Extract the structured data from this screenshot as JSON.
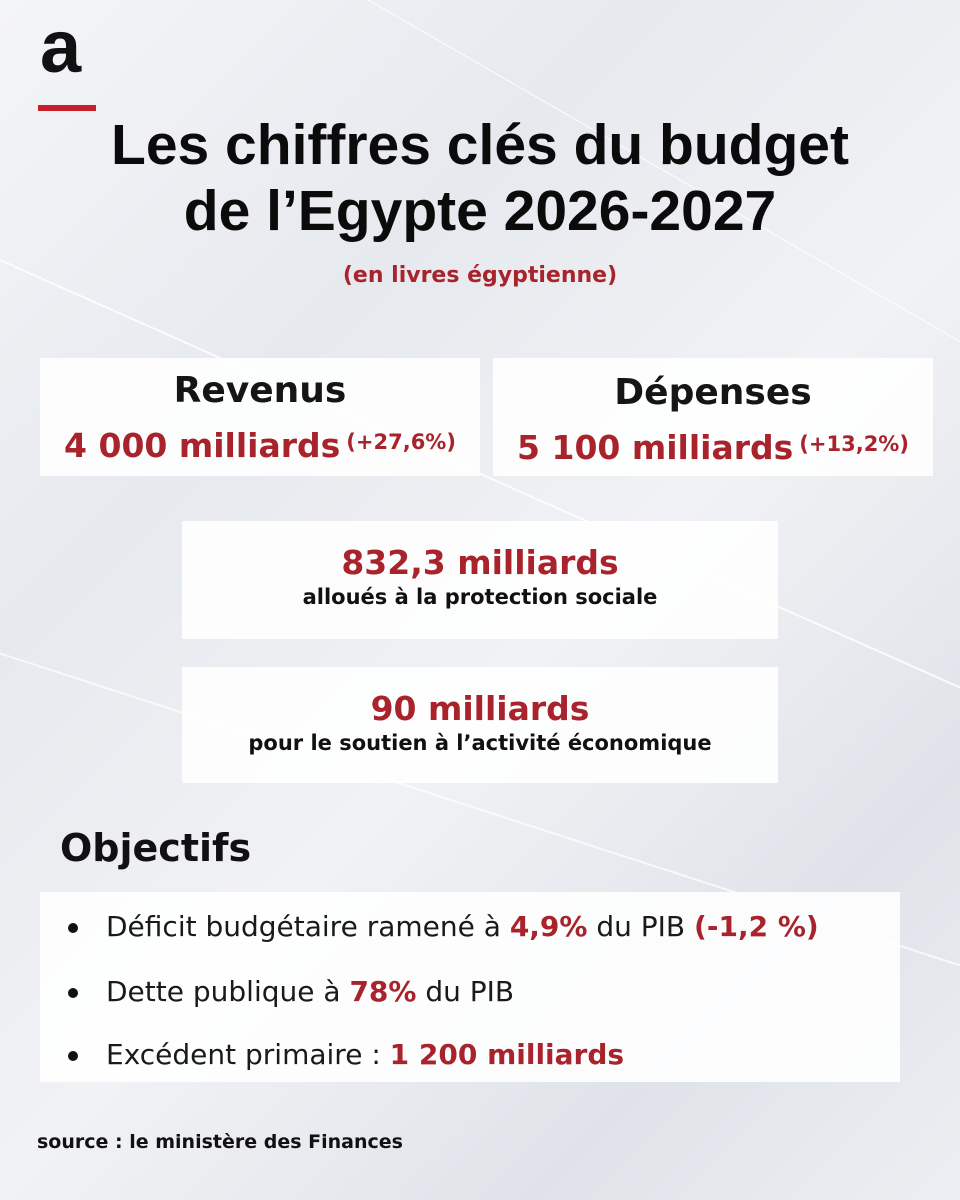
{
  "brand": {
    "logo_letter": "a",
    "accent_color": "#c8202a"
  },
  "title": {
    "line1": "Les chiffres clés du budget",
    "line2": "de l’Egypte 2026-2027"
  },
  "subtitle": "(en livres égyptienne)",
  "revenus": {
    "label": "Revenus",
    "value": "4 000 milliards",
    "change": "(+27,6%)"
  },
  "depenses": {
    "label": "Dépenses",
    "value": "5 100 milliards",
    "change": "(+13,2%)"
  },
  "social": {
    "value": "832,3 milliards",
    "description": "alloués à la protection sociale"
  },
  "economie": {
    "value": "90 milliards",
    "description": "pour le soutien à l’activité économique"
  },
  "objectifs": {
    "heading": "Objectifs",
    "items": [
      {
        "before": "Déficit budgétaire ramené à ",
        "highlight": "4,9%",
        "after": " du PIB ",
        "highlight2": "(-1,2 %)"
      },
      {
        "before": "Dette publique à ",
        "highlight": "78%",
        "after": " du PIB"
      },
      {
        "before": "Excédent primaire : ",
        "highlight": "1 200 milliards"
      }
    ]
  },
  "source": "source : le ministère des Finances",
  "colors": {
    "highlight": "#a8232b",
    "text": "#111111",
    "card_bg": "#ffffff"
  }
}
